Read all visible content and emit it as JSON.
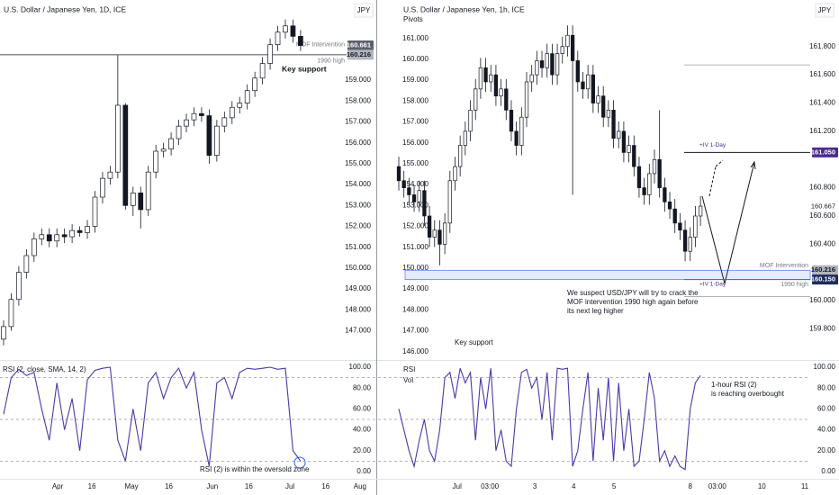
{
  "chart_data": [
    {
      "type": "candlestick",
      "title": "U.S. Dollar / Japanese Yen, 1D, ICE",
      "currency": "JPY",
      "xlim": [
        -0.47,
        48.94
      ],
      "xticks": [
        {
          "value": 7.1,
          "label": "Apr"
        },
        {
          "value": 11.6,
          "label": "16"
        },
        {
          "value": 16.8,
          "label": "May"
        },
        {
          "value": 21.7,
          "label": "16"
        },
        {
          "value": 27.4,
          "label": "Jun"
        },
        {
          "value": 32.2,
          "label": "16"
        },
        {
          "value": 37.6,
          "label": "Jul"
        },
        {
          "value": 42.3,
          "label": "16"
        },
        {
          "value": 46.8,
          "label": "Aug"
        }
      ],
      "ylim": [
        145.6,
        162.84
      ],
      "yticks": [
        {
          "value": 147,
          "label": "147.000"
        },
        {
          "value": 148,
          "label": "148.000"
        },
        {
          "value": 149,
          "label": "149.000"
        },
        {
          "value": 150,
          "label": "150.000"
        },
        {
          "value": 151,
          "label": "151.000"
        },
        {
          "value": 152,
          "label": "152.000"
        },
        {
          "value": 153,
          "label": "153.000"
        },
        {
          "value": 154,
          "label": "154.000"
        },
        {
          "value": 155,
          "label": "155.000"
        },
        {
          "value": 156,
          "label": "156.000"
        },
        {
          "value": 157,
          "label": "157.000"
        },
        {
          "value": 158,
          "label": "158.000"
        },
        {
          "value": 159,
          "label": "159.000"
        }
      ],
      "up_color": "#ffffff",
      "down_color": "#131722",
      "open": [
        146.6,
        147.2,
        148.5,
        149.8,
        150.6,
        151.4,
        151.6,
        151.3,
        151.6,
        151.5,
        151.8,
        151.7,
        152.0,
        153.4,
        154.3,
        154.6,
        157.8,
        153.0,
        153.6,
        152.8,
        154.6,
        155.6,
        155.7,
        156.2,
        156.8,
        157.1,
        157.4,
        157.3,
        155.4,
        156.8,
        157.2,
        157.7,
        157.9,
        158.5,
        159.1,
        159.8,
        160.7,
        161.3,
        161.6,
        161.1
      ],
      "high": [
        147.5,
        148.8,
        150.1,
        150.9,
        151.7,
        151.9,
        151.9,
        151.9,
        151.9,
        152.1,
        152.0,
        152.3,
        153.7,
        154.6,
        154.9,
        160.2,
        157.9,
        153.9,
        153.9,
        154.9,
        155.9,
        156.0,
        156.5,
        157.1,
        157.4,
        157.7,
        157.7,
        157.6,
        157.1,
        157.5,
        158.0,
        158.2,
        158.8,
        159.4,
        160.1,
        161.0,
        161.6,
        161.9,
        161.9,
        161.4
      ],
      "low": [
        146.3,
        147.0,
        148.2,
        149.5,
        150.3,
        151.1,
        151.0,
        151.0,
        151.2,
        151.2,
        151.5,
        151.4,
        151.7,
        153.1,
        154.0,
        154.3,
        152.8,
        152.5,
        151.9,
        152.5,
        154.3,
        155.3,
        155.4,
        155.9,
        156.5,
        156.8,
        157.0,
        155.0,
        155.1,
        156.5,
        156.9,
        157.4,
        157.6,
        158.2,
        158.8,
        159.5,
        160.4,
        161.0,
        160.8,
        160.4
      ],
      "close": [
        147.2,
        148.5,
        149.8,
        150.6,
        151.4,
        151.6,
        151.3,
        151.6,
        151.5,
        151.8,
        151.7,
        152.0,
        153.4,
        154.3,
        154.6,
        157.8,
        153.0,
        153.6,
        152.8,
        154.6,
        155.6,
        155.7,
        156.2,
        156.8,
        157.1,
        157.4,
        157.3,
        155.4,
        156.8,
        157.2,
        157.7,
        157.9,
        158.5,
        159.1,
        159.8,
        160.7,
        161.3,
        161.6,
        161.1,
        160.66
      ],
      "price_labels": [
        {
          "value": 160.661,
          "label": "160.661",
          "color": "#5d606b",
          "text_color": "#ffffff"
        },
        {
          "value": 160.216,
          "label": "160.216",
          "color": "#b2b5be",
          "text_color": "#131722"
        }
      ],
      "level": {
        "value": 160.216,
        "label": "MOF Intervention",
        "sublabel": "1990 high"
      },
      "annotation": "Key support"
    },
    {
      "type": "line",
      "title": "RSI (2, close, SMA, 14, 2)",
      "color": "#4a3aa8",
      "ylim": [
        -6.9,
        106.9
      ],
      "yticks": [
        {
          "value": 0,
          "label": "0.00"
        },
        {
          "value": 20,
          "label": "20.00"
        },
        {
          "value": 40,
          "label": "40.00"
        },
        {
          "value": 60,
          "label": "60.00"
        },
        {
          "value": 80,
          "label": "80.00"
        },
        {
          "value": 100,
          "label": "100.00"
        }
      ],
      "levels": [
        10,
        50,
        90
      ],
      "values": [
        55,
        90,
        98,
        92,
        95,
        60,
        30,
        85,
        40,
        70,
        20,
        88,
        97,
        99,
        100,
        30,
        10,
        60,
        20,
        85,
        95,
        70,
        90,
        99,
        80,
        95,
        40,
        5,
        85,
        90,
        70,
        95,
        99,
        98,
        99,
        100,
        98,
        99,
        20,
        10
      ],
      "annotation": "RSI (2) is within the oversold zone"
    },
    {
      "type": "candlestick",
      "title": "U.S. Dollar / Japanese Yen, 1h, ICE",
      "subtitle": "Pivots",
      "currency": "JPY",
      "xlim": [
        -4.05,
        80.46
      ],
      "xticks": [
        {
          "value": 11.4,
          "label": "Jul"
        },
        {
          "value": 17.8,
          "label": "03:00"
        },
        {
          "value": 26.6,
          "label": "3"
        },
        {
          "value": 34.2,
          "label": "4"
        },
        {
          "value": 42.1,
          "label": "5"
        },
        {
          "value": 57.0,
          "label": "8"
        },
        {
          "value": 62.3,
          "label": "03:00"
        },
        {
          "value": 71.0,
          "label": "10"
        },
        {
          "value": 79.4,
          "label": "11"
        }
      ],
      "ylim": [
        159.58,
        162.13
      ],
      "yticks": [
        {
          "value": 159.8,
          "label": "159.800"
        },
        {
          "value": 160.0,
          "label": "160.000"
        },
        {
          "value": 160.4,
          "label": "160.400"
        },
        {
          "value": 160.6,
          "label": "160.600"
        },
        {
          "value": 160.8,
          "label": "160.800"
        },
        {
          "value": 161.2,
          "label": "161.200"
        },
        {
          "value": 161.4,
          "label": "161.400"
        },
        {
          "value": 161.6,
          "label": "161.600"
        },
        {
          "value": 161.8,
          "label": "161.800"
        }
      ],
      "y2lim": [
        145.6,
        162.84
      ],
      "y2ticks": [
        {
          "value": 146,
          "label": "146.000"
        },
        {
          "value": 147,
          "label": "147.000"
        },
        {
          "value": 148,
          "label": "148.000"
        },
        {
          "value": 149,
          "label": "149.000"
        },
        {
          "value": 150,
          "label": "150.000"
        },
        {
          "value": 151,
          "label": "151.000"
        },
        {
          "value": 152,
          "label": "152.000"
        },
        {
          "value": 153,
          "label": "153.000"
        },
        {
          "value": 154,
          "label": "154.000"
        },
        {
          "value": 155,
          "label": "155.000"
        },
        {
          "value": 156,
          "label": "156.000"
        },
        {
          "value": 157,
          "label": "157.000"
        },
        {
          "value": 158,
          "label": "158.000"
        },
        {
          "value": 159,
          "label": "159.000"
        },
        {
          "value": 160,
          "label": "160.000"
        },
        {
          "value": 161,
          "label": "161.000"
        }
      ],
      "up_color": "#ffffff",
      "down_color": "#131722",
      "open": [
        160.95,
        160.85,
        160.8,
        160.75,
        160.7,
        160.78,
        160.6,
        160.45,
        160.5,
        160.4,
        160.55,
        160.85,
        160.95,
        161.1,
        161.2,
        161.35,
        161.5,
        161.65,
        161.55,
        161.6,
        161.45,
        161.5,
        161.35,
        161.2,
        161.1,
        161.3,
        161.55,
        161.6,
        161.7,
        161.65,
        161.75,
        161.6,
        161.75,
        161.8,
        161.88,
        161.7,
        161.55,
        161.5,
        161.6,
        161.4,
        161.45,
        161.3,
        161.35,
        161.15,
        161.2,
        161.05,
        161.1,
        160.95,
        160.8,
        160.75,
        160.9,
        161.0,
        160.8,
        160.7,
        160.65,
        160.55,
        160.5,
        160.35,
        160.45,
        160.6
      ],
      "high": [
        161.02,
        160.92,
        160.87,
        160.82,
        160.85,
        160.85,
        160.67,
        160.57,
        160.57,
        160.62,
        160.92,
        161.02,
        161.17,
        161.27,
        161.42,
        161.57,
        161.72,
        161.72,
        161.67,
        161.67,
        161.57,
        161.57,
        161.42,
        161.27,
        161.37,
        161.62,
        161.67,
        161.77,
        161.77,
        161.82,
        161.82,
        161.82,
        161.87,
        161.95,
        161.95,
        161.77,
        161.62,
        161.67,
        161.67,
        161.52,
        161.52,
        161.42,
        161.42,
        161.27,
        161.27,
        161.17,
        161.17,
        161.02,
        160.87,
        160.97,
        161.07,
        161.35,
        160.87,
        160.77,
        160.72,
        160.62,
        160.57,
        160.52,
        160.67,
        160.74
      ],
      "low": [
        160.78,
        160.73,
        160.68,
        160.63,
        160.63,
        160.53,
        160.38,
        160.38,
        160.25,
        160.33,
        160.48,
        160.78,
        160.88,
        161.03,
        161.13,
        161.28,
        161.43,
        161.48,
        161.48,
        161.38,
        161.38,
        161.28,
        161.13,
        161.03,
        161.03,
        161.23,
        161.48,
        161.53,
        161.58,
        161.58,
        161.53,
        161.53,
        161.68,
        161.73,
        160.75,
        161.48,
        161.43,
        161.43,
        161.33,
        161.33,
        161.23,
        161.23,
        161.08,
        161.08,
        160.98,
        160.98,
        160.88,
        160.73,
        160.68,
        160.68,
        160.83,
        160.73,
        160.63,
        160.58,
        160.48,
        160.43,
        160.28,
        160.28,
        160.38,
        160.53
      ],
      "close": [
        160.85,
        160.8,
        160.75,
        160.7,
        160.78,
        160.6,
        160.45,
        160.5,
        160.4,
        160.55,
        160.85,
        160.95,
        161.1,
        161.2,
        161.35,
        161.5,
        161.65,
        161.55,
        161.6,
        161.45,
        161.5,
        161.35,
        161.2,
        161.1,
        161.3,
        161.55,
        161.6,
        161.7,
        161.65,
        161.75,
        161.6,
        161.75,
        161.8,
        161.88,
        161.7,
        161.55,
        161.5,
        161.6,
        161.4,
        161.45,
        161.3,
        161.35,
        161.15,
        161.2,
        161.05,
        161.1,
        160.95,
        160.8,
        160.75,
        160.9,
        161.0,
        160.8,
        160.7,
        160.65,
        160.55,
        160.5,
        160.35,
        160.45,
        160.6,
        160.67
      ],
      "price_labels": [
        {
          "value": 161.05,
          "label": "161.050",
          "color": "#4a2c8f",
          "text_color": "#ffffff"
        },
        {
          "value": 160.667,
          "label": "160.667"
        },
        {
          "value": 160.216,
          "label": "160.216",
          "color": "#b2b5be",
          "text_color": "#131722"
        },
        {
          "value": 160.15,
          "label": "160.150",
          "color": "#1e2b5c",
          "text_color": "#ffffff"
        }
      ],
      "zone": {
        "label": "MOF Intervention",
        "sublabel": "1990 high"
      },
      "pivots": [
        {
          "value": 161.05,
          "label": "+IV 1-Day"
        },
        {
          "value": 160.15,
          "label": "+IV 1-Day"
        }
      ],
      "pivot_levels": [
        161.67,
        160.03
      ],
      "note": [
        "We suspect USD/JPY will try to crack the",
        "MOF intervention 1990 high again before",
        "its next leg higher"
      ],
      "annotation": "Key support"
    },
    {
      "type": "line",
      "title": "RSI",
      "subtitle": "Vol",
      "color": "#4a3aa8",
      "ylim": [
        -6.9,
        106.9
      ],
      "yticks": [
        {
          "value": 0,
          "label": "0.00"
        },
        {
          "value": 20,
          "label": "20.00"
        },
        {
          "value": 40,
          "label": "40.00"
        },
        {
          "value": 60,
          "label": "60.00"
        },
        {
          "value": 80,
          "label": "80.00"
        },
        {
          "value": 100,
          "label": "100.00"
        }
      ],
      "levels": [
        10,
        50,
        90
      ],
      "values": [
        60,
        40,
        20,
        5,
        30,
        50,
        20,
        10,
        40,
        90,
        95,
        70,
        99,
        85,
        95,
        30,
        90,
        60,
        99,
        20,
        40,
        10,
        5,
        60,
        95,
        98,
        80,
        90,
        50,
        95,
        30,
        99,
        98,
        99,
        5,
        20,
        60,
        95,
        10,
        80,
        30,
        90,
        10,
        85,
        20,
        60,
        5,
        10,
        50,
        95,
        70,
        10,
        20,
        5,
        15,
        5,
        2,
        60,
        85,
        92
      ],
      "annotation": [
        "1-hour RSI (2)",
        "is reaching overbought"
      ]
    }
  ]
}
